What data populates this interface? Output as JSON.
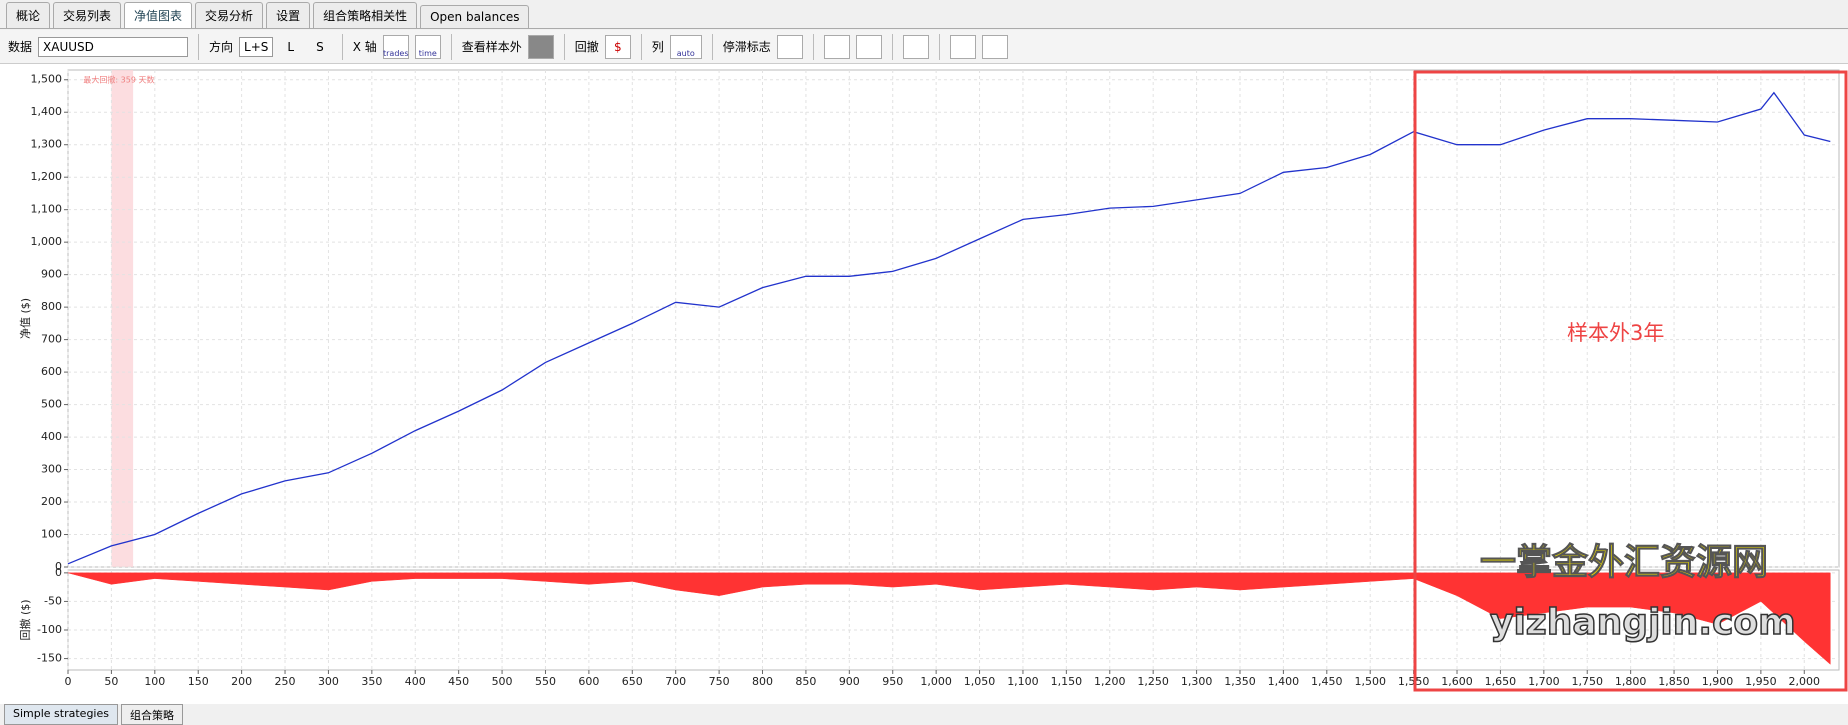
{
  "tabs": [
    "概论",
    "交易列表",
    "净值图表",
    "交易分析",
    "设置",
    "组合策略相关性",
    "Open balances"
  ],
  "toolbar": {
    "data_label": "数据",
    "data_value": "XAUUSD",
    "direction_label": "方向",
    "direction_options": [
      "L+S",
      "L",
      "S"
    ],
    "x_axis_label": "X 轴",
    "x_axis_options": [
      "trades",
      "time"
    ],
    "oos_label": "查看样本外",
    "drawdown_label": "回撤",
    "columns_label": "列",
    "columns_value": "auto",
    "stagnation_label": "停滞标志"
  },
  "overlay": {
    "label": "样本外3年"
  },
  "watermark": {
    "line1": "一掌金外汇资源网",
    "line2": "yizhangjin.com"
  },
  "bottom_tabs": [
    "Simple strategies",
    "组合策略"
  ],
  "chart_data": [
    {
      "type": "line",
      "y_label": "净值 ($)",
      "color": "#2233cc",
      "annotation": "最大回撤: 359 天数",
      "shade_x": [
        50,
        75
      ],
      "grid": true,
      "x": [
        0,
        50,
        100,
        150,
        200,
        250,
        300,
        350,
        400,
        450,
        500,
        550,
        600,
        650,
        700,
        750,
        800,
        850,
        900,
        950,
        1000,
        1050,
        1100,
        1150,
        1200,
        1250,
        1300,
        1350,
        1400,
        1450,
        1500,
        1550,
        1600,
        1650,
        1700,
        1750,
        1800,
        1850,
        1900,
        1950,
        1965,
        2000,
        2030
      ],
      "values": [
        10,
        65,
        100,
        165,
        225,
        265,
        290,
        350,
        420,
        480,
        545,
        630,
        690,
        750,
        815,
        800,
        860,
        895,
        895,
        910,
        950,
        1010,
        1070,
        1085,
        1105,
        1110,
        1130,
        1150,
        1215,
        1230,
        1270,
        1340,
        1300,
        1300,
        1345,
        1380,
        1380,
        1375,
        1370,
        1410,
        1460,
        1330,
        1310
      ],
      "xlim": [
        0,
        2040
      ],
      "ylim": [
        0,
        1530
      ],
      "yticks": [
        0,
        100,
        200,
        300,
        400,
        500,
        600,
        700,
        800,
        900,
        {
          "value": 1000,
          "label": "1,000"
        },
        {
          "value": 1100,
          "label": "1,100"
        },
        {
          "value": 1200,
          "label": "1,200"
        },
        {
          "value": 1300,
          "label": "1,300"
        },
        {
          "value": 1400,
          "label": "1,400"
        },
        {
          "value": 1500,
          "label": "1,500"
        }
      ]
    },
    {
      "type": "area",
      "y_label": "回撤 ($)",
      "color": "#ff3333",
      "grid": true,
      "x": [
        0,
        50,
        100,
        150,
        200,
        250,
        300,
        350,
        400,
        450,
        500,
        550,
        600,
        650,
        700,
        750,
        800,
        850,
        900,
        950,
        1000,
        1050,
        1100,
        1150,
        1200,
        1250,
        1300,
        1350,
        1400,
        1450,
        1500,
        1550,
        1600,
        1650,
        1700,
        1750,
        1800,
        1850,
        1900,
        1950,
        2000,
        2030
      ],
      "values": [
        0,
        -20,
        -10,
        -15,
        -20,
        -25,
        -30,
        -15,
        -10,
        -10,
        -10,
        -15,
        -20,
        -15,
        -30,
        -40,
        -25,
        -20,
        -20,
        -25,
        -20,
        -30,
        -25,
        -20,
        -25,
        -30,
        -25,
        -30,
        -25,
        -20,
        -15,
        -10,
        -40,
        -80,
        -70,
        -60,
        -60,
        -70,
        -90,
        -50,
        -120,
        -160
      ],
      "xlim": [
        0,
        2040
      ],
      "ylim": [
        -170,
        5
      ],
      "yticks": [
        0,
        -50,
        -100,
        -150
      ],
      "xticks": [
        0,
        50,
        100,
        150,
        200,
        250,
        300,
        350,
        400,
        450,
        500,
        550,
        600,
        650,
        700,
        750,
        800,
        850,
        900,
        950,
        {
          "value": 1000,
          "label": "1,000"
        },
        {
          "value": 1050,
          "label": "1,050"
        },
        {
          "value": 1100,
          "label": "1,100"
        },
        {
          "value": 1150,
          "label": "1,150"
        },
        {
          "value": 1200,
          "label": "1,200"
        },
        {
          "value": 1250,
          "label": "1,250"
        },
        {
          "value": 1300,
          "label": "1,300"
        },
        {
          "value": 1350,
          "label": "1,350"
        },
        {
          "value": 1400,
          "label": "1,400"
        },
        {
          "value": 1450,
          "label": "1,450"
        },
        {
          "value": 1500,
          "label": "1,500"
        },
        {
          "value": 1550,
          "label": "1,550"
        },
        {
          "value": 1600,
          "label": "1,600"
        },
        {
          "value": 1650,
          "label": "1,650"
        },
        {
          "value": 1700,
          "label": "1,700"
        },
        {
          "value": 1750,
          "label": "1,750"
        },
        {
          "value": 1800,
          "label": "1,800"
        },
        {
          "value": 1850,
          "label": "1,850"
        },
        {
          "value": 1900,
          "label": "1,900"
        },
        {
          "value": 1950,
          "label": "1,950"
        },
        {
          "value": 2000,
          "label": "2,000"
        }
      ]
    }
  ]
}
